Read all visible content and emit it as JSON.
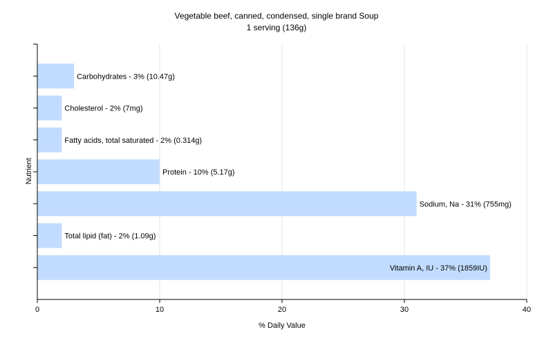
{
  "chart_data": {
    "type": "bar",
    "orientation": "horizontal",
    "title": "Vegetable beef, canned, condensed, single brand Soup",
    "subtitle": "1 serving (136g)",
    "xlabel": "% Daily Value",
    "ylabel": "Nutrient",
    "xlim": [
      0,
      40
    ],
    "xticks": [
      "0",
      "10",
      "20",
      "30",
      "40"
    ],
    "grid": true,
    "bar_color": "#c2dcff",
    "categories": [
      "Carbohydrates",
      "Cholesterol",
      "Fatty acids, total saturated",
      "Protein",
      "Sodium, Na",
      "Total lipid (fat)",
      "Vitamin A, IU"
    ],
    "values": [
      3,
      2,
      2,
      10,
      31,
      2,
      37
    ],
    "data_labels": [
      "Carbohydrates - 3% (10.47g)",
      "Cholesterol - 2% (7mg)",
      "Fatty acids, total saturated - 2% (0.314g)",
      "Protein - 10% (5.17g)",
      "Sodium, Na - 31% (755mg)",
      "Total lipid (fat) - 2% (1.09g)",
      "Vitamin A, IU - 37% (1859IU)"
    ]
  }
}
